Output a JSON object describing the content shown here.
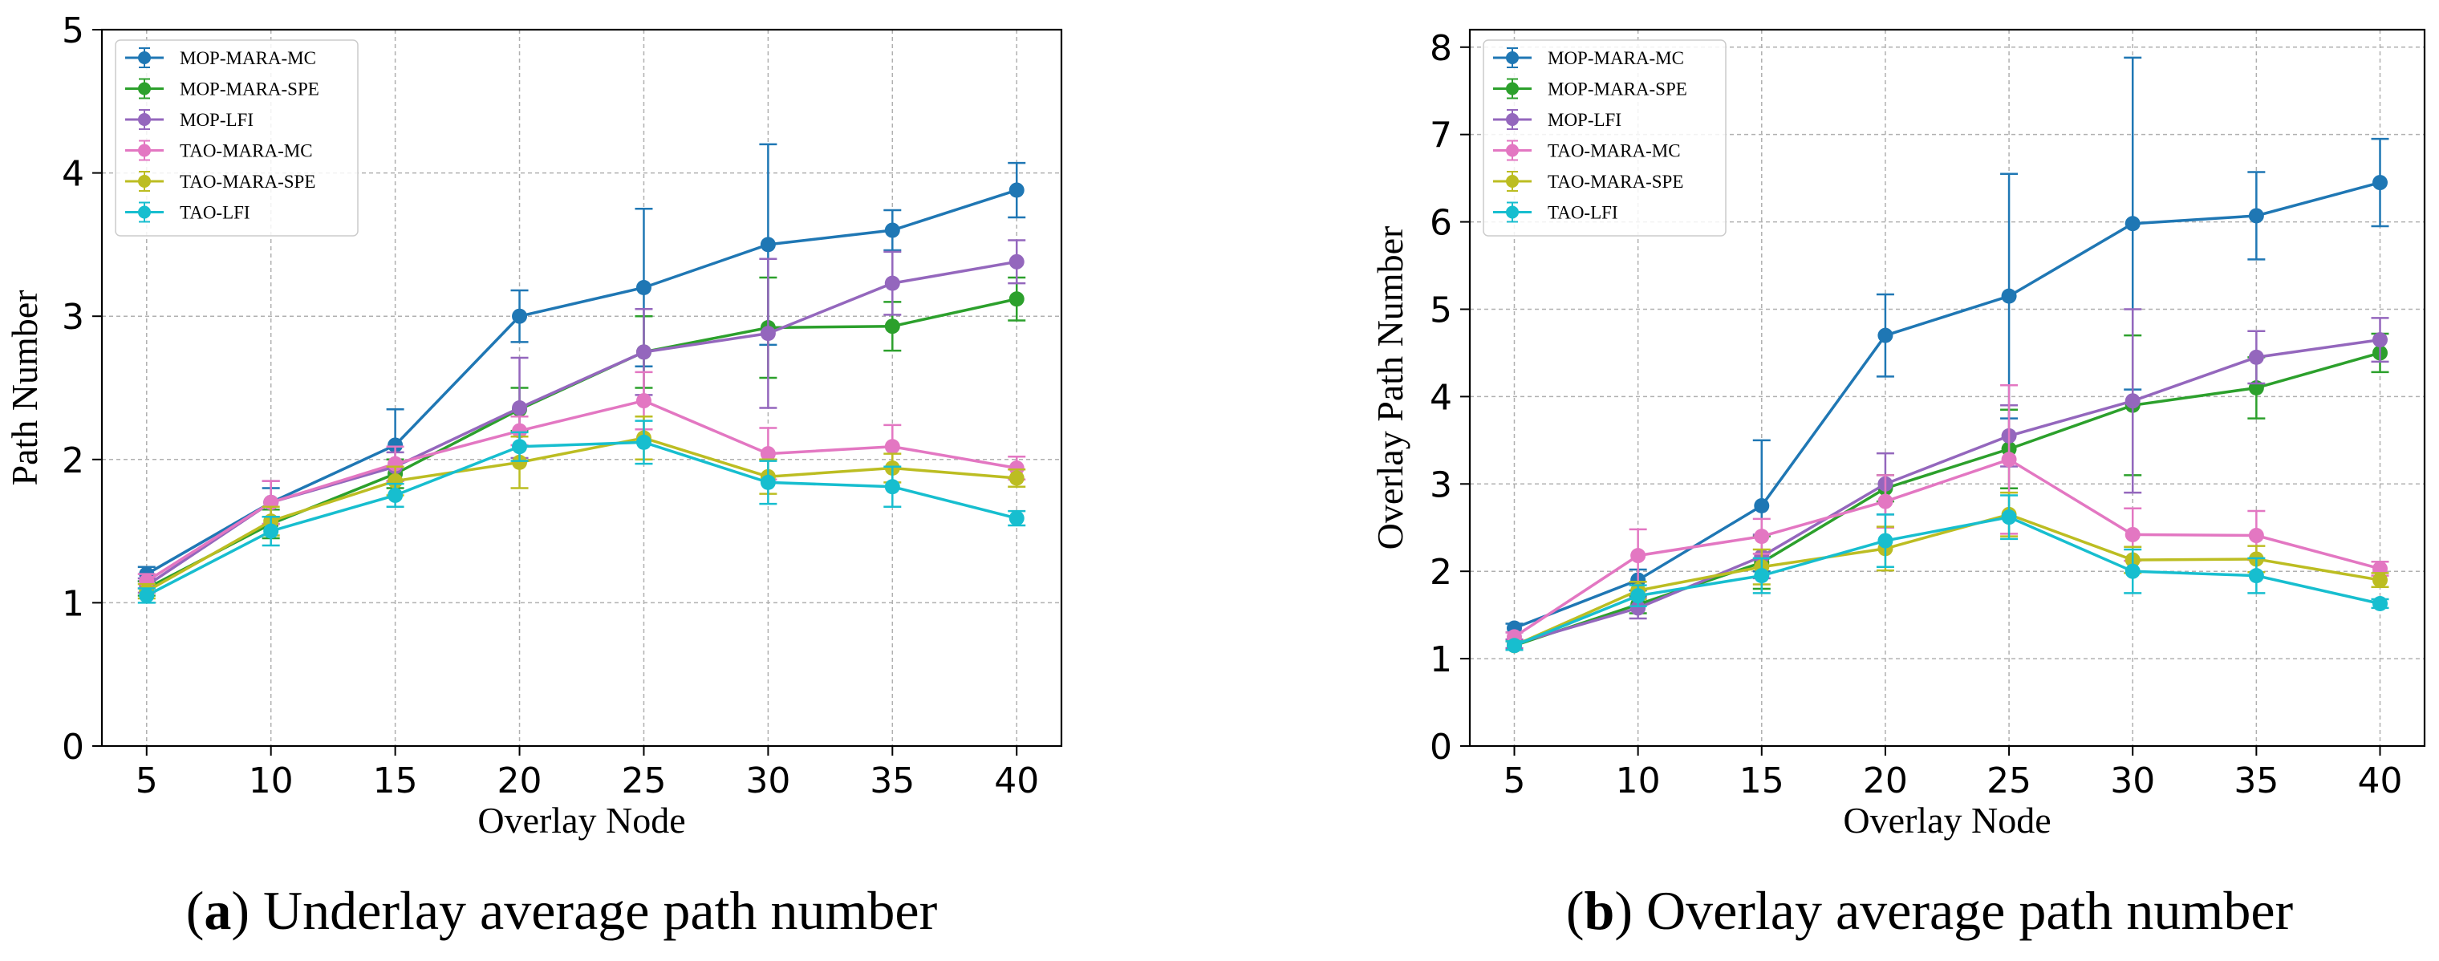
{
  "chart_data": [
    {
      "type": "line",
      "panel_label": "a",
      "caption": "Underlay average path number",
      "xlabel": "Overlay Node",
      "ylabel": "Path Number",
      "x": [
        5,
        10,
        15,
        20,
        25,
        30,
        35,
        40
      ],
      "xlim": [
        3.2,
        41.8
      ],
      "ylim": [
        0,
        5
      ],
      "yticks": [
        0,
        1,
        2,
        3,
        4,
        5
      ],
      "xticks": [
        5,
        10,
        15,
        20,
        25,
        30,
        35,
        40
      ],
      "grid": true,
      "legend_position": "top-left",
      "series": [
        {
          "name": "MOP-MARA-MC",
          "color": "#1f77b4",
          "values": [
            1.2,
            1.7,
            2.1,
            3.0,
            3.2,
            3.5,
            3.6,
            3.88
          ],
          "errors": [
            0.05,
            0.1,
            0.25,
            0.18,
            0.55,
            0.7,
            0.14,
            0.19
          ]
        },
        {
          "name": "MOP-MARA-SPE",
          "color": "#2ca02c",
          "values": [
            1.1,
            1.55,
            1.9,
            2.35,
            2.75,
            2.92,
            2.93,
            3.12
          ],
          "errors": [
            0.05,
            0.1,
            0.1,
            0.15,
            0.25,
            0.35,
            0.17,
            0.15
          ]
        },
        {
          "name": "MOP-LFI",
          "color": "#9467bd",
          "values": [
            1.12,
            1.7,
            1.95,
            2.36,
            2.75,
            2.88,
            3.23,
            3.38
          ],
          "errors": [
            0.05,
            0.15,
            0.1,
            0.35,
            0.3,
            0.52,
            0.22,
            0.15
          ]
        },
        {
          "name": "TAO-MARA-MC",
          "color": "#e377c2",
          "values": [
            1.15,
            1.7,
            1.97,
            2.2,
            2.41,
            2.04,
            2.09,
            1.94
          ],
          "errors": [
            0.05,
            0.15,
            0.12,
            0.1,
            0.2,
            0.18,
            0.15,
            0.08
          ]
        },
        {
          "name": "TAO-MARA-SPE",
          "color": "#bcbd22",
          "values": [
            1.08,
            1.57,
            1.85,
            1.98,
            2.15,
            1.88,
            1.94,
            1.87
          ],
          "errors": [
            0.05,
            0.1,
            0.1,
            0.18,
            0.15,
            0.12,
            0.1,
            0.06
          ]
        },
        {
          "name": "TAO-LFI",
          "color": "#17becf",
          "values": [
            1.05,
            1.5,
            1.75,
            2.09,
            2.12,
            1.84,
            1.81,
            1.59
          ],
          "errors": [
            0.05,
            0.1,
            0.08,
            0.1,
            0.15,
            0.15,
            0.14,
            0.05
          ]
        }
      ]
    },
    {
      "type": "line",
      "panel_label": "b",
      "caption": "Overlay average path number",
      "xlabel": "Overlay Node",
      "ylabel": "Overlay Path Number",
      "x": [
        5,
        10,
        15,
        20,
        25,
        30,
        35,
        40
      ],
      "xlim": [
        3.2,
        41.8
      ],
      "ylim": [
        0,
        8.2
      ],
      "yticks": [
        0,
        1,
        2,
        3,
        4,
        5,
        6,
        7,
        8
      ],
      "xticks": [
        5,
        10,
        15,
        20,
        25,
        30,
        35,
        40
      ],
      "grid": true,
      "legend_position": "top-left",
      "series": [
        {
          "name": "MOP-MARA-MC",
          "color": "#1f77b4",
          "values": [
            1.35,
            1.9,
            2.75,
            4.7,
            5.15,
            5.98,
            6.07,
            6.45
          ],
          "errors": [
            0.05,
            0.12,
            0.75,
            0.47,
            1.4,
            1.9,
            0.5,
            0.5
          ]
        },
        {
          "name": "MOP-MARA-SPE",
          "color": "#2ca02c",
          "values": [
            1.15,
            1.62,
            2.1,
            2.95,
            3.4,
            3.9,
            4.1,
            4.5
          ],
          "errors": [
            0.05,
            0.1,
            0.3,
            0.15,
            0.45,
            0.8,
            0.35,
            0.22
          ]
        },
        {
          "name": "MOP-LFI",
          "color": "#9467bd",
          "values": [
            1.17,
            1.58,
            2.17,
            3.0,
            3.55,
            3.95,
            4.45,
            4.65
          ],
          "errors": [
            0.05,
            0.12,
            0.25,
            0.35,
            0.35,
            1.05,
            0.3,
            0.25
          ]
        },
        {
          "name": "TAO-MARA-MC",
          "color": "#e377c2",
          "values": [
            1.25,
            2.18,
            2.4,
            2.8,
            3.28,
            2.42,
            2.41,
            2.03
          ],
          "errors": [
            0.05,
            0.3,
            0.2,
            0.3,
            0.85,
            0.3,
            0.28,
            0.08
          ]
        },
        {
          "name": "TAO-MARA-SPE",
          "color": "#bcbd22",
          "values": [
            1.15,
            1.78,
            2.05,
            2.26,
            2.65,
            2.13,
            2.14,
            1.9
          ],
          "errors": [
            0.05,
            0.1,
            0.2,
            0.25,
            0.25,
            0.15,
            0.15,
            0.08
          ]
        },
        {
          "name": "TAO-LFI",
          "color": "#17becf",
          "values": [
            1.15,
            1.72,
            1.95,
            2.35,
            2.62,
            2.0,
            1.95,
            1.63
          ],
          "errors": [
            0.05,
            0.12,
            0.2,
            0.3,
            0.25,
            0.25,
            0.2,
            0.05
          ]
        }
      ]
    }
  ]
}
